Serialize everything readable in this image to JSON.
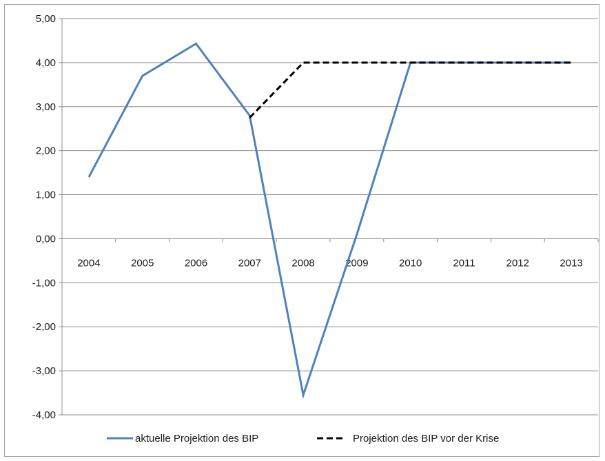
{
  "chart_data": {
    "type": "line",
    "title": "",
    "xlabel": "",
    "ylabel": "",
    "categories": [
      "2004",
      "2005",
      "2006",
      "2007",
      "2008",
      "2009",
      "2010",
      "2011",
      "2012",
      "2013"
    ],
    "ylim": [
      -4,
      5
    ],
    "y_ticks": [
      "5,00",
      "4,00",
      "3,00",
      "2,00",
      "1,00",
      "0,00",
      "-1,00",
      "-2,00",
      "-3,00",
      "-4,00"
    ],
    "y_tick_values": [
      5,
      4,
      3,
      2,
      1,
      0,
      -1,
      -2,
      -3,
      -4
    ],
    "grid": true,
    "legend_position": "bottom",
    "series": [
      {
        "name": "aktuelle Projektion des BIP",
        "style": "solid",
        "color": "#4f81bd",
        "values": [
          1.4,
          3.7,
          4.43,
          2.8,
          -3.55,
          0.1,
          4.0,
          4.0,
          4.0,
          4.0
        ]
      },
      {
        "name": "Projektion des BIP vor der Krise",
        "style": "dashed",
        "color": "#000000",
        "values": [
          null,
          null,
          null,
          2.75,
          4.0,
          4.0,
          4.0,
          4.0,
          4.0,
          4.0
        ]
      }
    ]
  }
}
